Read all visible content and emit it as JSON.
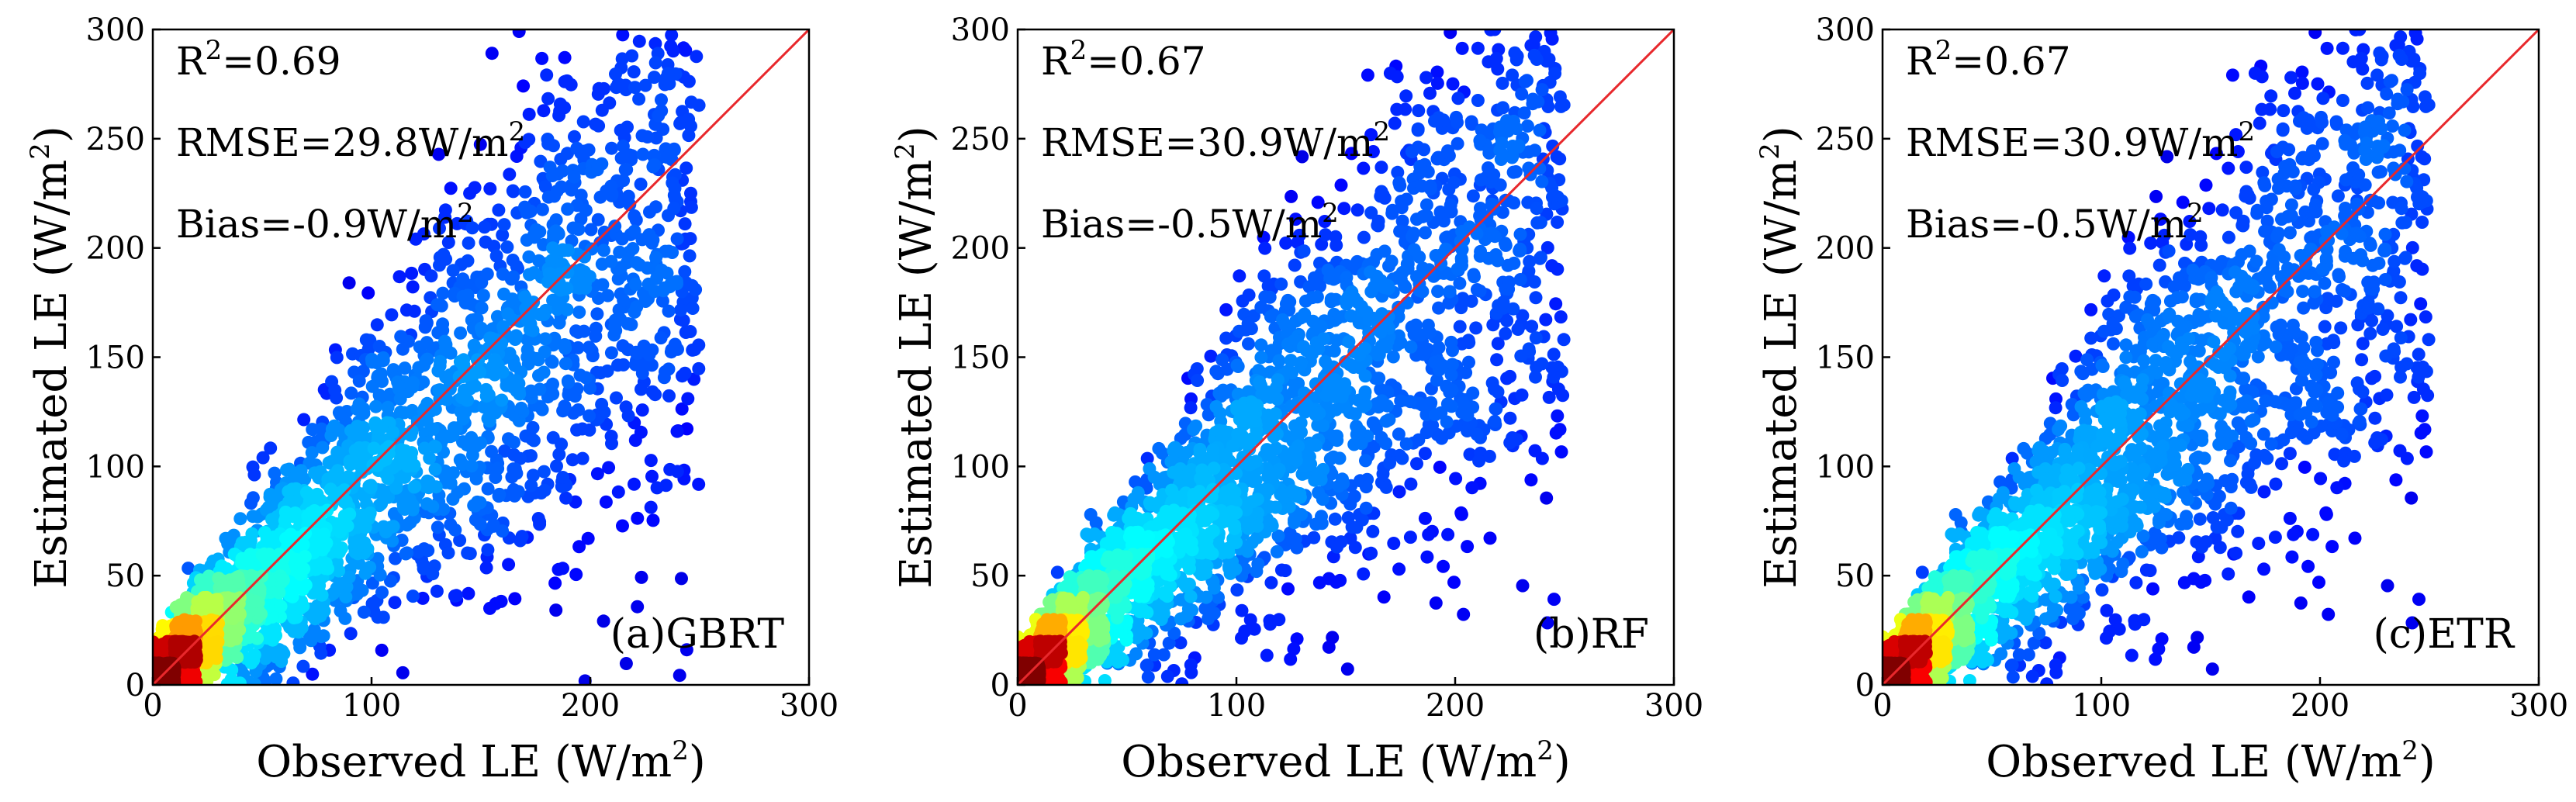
{
  "figure": {
    "description_title": ""
  },
  "chart_data": [
    {
      "type": "scatter",
      "panel_label": "(a)GBRT",
      "model": "GBRT",
      "xlabel": "Observed LE (W/m",
      "xlabel_sup": "2",
      "xlabel_tail": ")",
      "ylabel": "Estimated LE (W/m",
      "ylabel_sup": "2",
      "ylabel_tail": ")",
      "xlim": [
        0,
        300
      ],
      "ylim": [
        0,
        300
      ],
      "xticks": [
        "0",
        "100",
        "200",
        "300"
      ],
      "yticks": [
        "0",
        "50",
        "100",
        "150",
        "200",
        "250",
        "300"
      ],
      "stats": {
        "r2_prefix": "R",
        "r2_sup": "2",
        "r2_value": "=0.69",
        "rmse_text": "RMSE=29.8W/m",
        "rmse_sup": "2",
        "bias_text": "Bias=-0.9W/m",
        "bias_sup": "2"
      },
      "reference_line": {
        "x": [
          0,
          300
        ],
        "y": [
          0,
          300
        ],
        "color": "#e8282c"
      },
      "point_distribution": {
        "n_points": 4200,
        "slope": 0.92,
        "intercept": 2,
        "seed": 11
      }
    },
    {
      "type": "scatter",
      "panel_label": "(b)RF",
      "model": "RF",
      "xlabel": "Observed LE (W/m",
      "xlabel_sup": "2",
      "xlabel_tail": ")",
      "ylabel": "Estimated LE (W/m",
      "ylabel_sup": "2",
      "ylabel_tail": ")",
      "xlim": [
        0,
        300
      ],
      "ylim": [
        0,
        300
      ],
      "xticks": [
        "0",
        "100",
        "200",
        "300"
      ],
      "yticks": [
        "0",
        "50",
        "100",
        "150",
        "200",
        "250",
        "300"
      ],
      "stats": {
        "r2_prefix": "R",
        "r2_sup": "2",
        "r2_value": "=0.67",
        "rmse_text": "RMSE=30.9W/m",
        "rmse_sup": "2",
        "bias_text": "Bias=-0.5W/m",
        "bias_sup": "2"
      },
      "reference_line": {
        "x": [
          0,
          300
        ],
        "y": [
          0,
          300
        ],
        "color": "#e8282c"
      },
      "point_distribution": {
        "n_points": 4200,
        "slope": 0.93,
        "intercept": 2,
        "seed": 23
      }
    },
    {
      "type": "scatter",
      "panel_label": "(c)ETR",
      "model": "ETR",
      "xlabel": "Observed LE (W/m",
      "xlabel_sup": "2",
      "xlabel_tail": ")",
      "ylabel": "Estimated LE (W/m",
      "ylabel_sup": "2",
      "ylabel_tail": ")",
      "xlim": [
        0,
        300
      ],
      "ylim": [
        0,
        300
      ],
      "xticks": [
        "0",
        "100",
        "200",
        "300"
      ],
      "yticks": [
        "0",
        "50",
        "100",
        "150",
        "200",
        "250",
        "300"
      ],
      "stats": {
        "r2_prefix": "R",
        "r2_sup": "2",
        "r2_value": "=0.67",
        "rmse_text": "RMSE=30.9W/m",
        "rmse_sup": "2",
        "bias_text": "Bias=-0.5W/m",
        "bias_sup": "2"
      },
      "reference_line": {
        "x": [
          0,
          300
        ],
        "y": [
          0,
          300
        ],
        "color": "#e8282c"
      },
      "point_distribution": {
        "n_points": 4200,
        "slope": 0.93,
        "intercept": 2,
        "seed": 23
      }
    }
  ],
  "colormap": [
    "#00008f",
    "#0000ff",
    "#0080ff",
    "#00ffff",
    "#80ff80",
    "#ffff00",
    "#ff8000",
    "#ff0000",
    "#800000"
  ]
}
